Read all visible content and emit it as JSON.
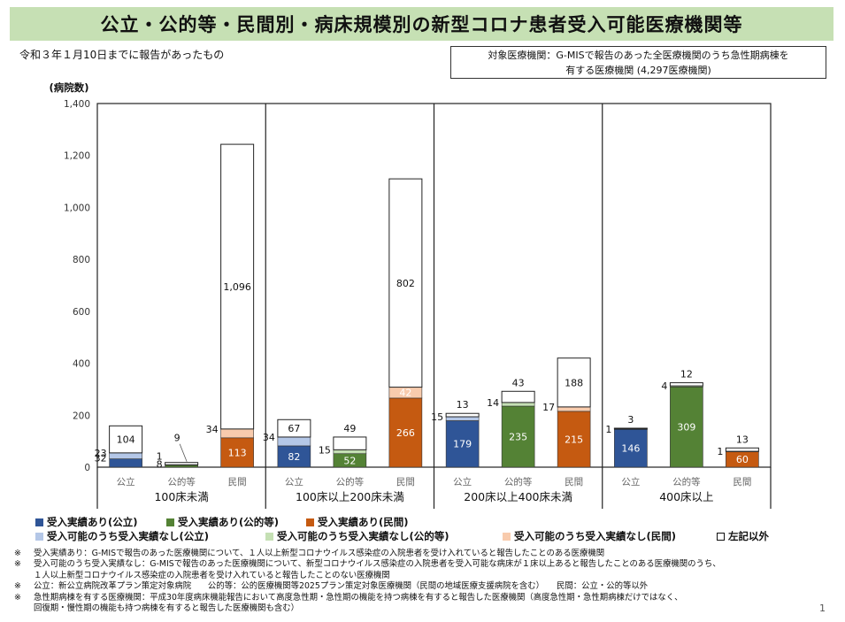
{
  "title": "公立・公的等・民間別・病床規模別の新型コロナ患者受入可能医療機関等",
  "subtitle": "令和３年１月10日までに報告があったもの",
  "target_box": {
    "line1": "対象医療機関：G-MISで報告のあった全医療機関のうち急性期病棟を",
    "line2": "有する医療機関 (4,297医療機関)"
  },
  "colors": {
    "public": "#2f5597",
    "quasi": "#548235",
    "private": "#c55a11",
    "public_light": "#b4c7e7",
    "quasi_light": "#c5e0b4",
    "private_light": "#f8cbad",
    "other": "#ffffff"
  },
  "chart_data": {
    "type": "bar",
    "stacked": true,
    "ylabel": "(病院数)",
    "ylim": [
      0,
      1400
    ],
    "yticks": [
      "0",
      "200",
      "400",
      "600",
      "800",
      "1,000",
      "1,200",
      "1,400"
    ],
    "grid": false,
    "groups": [
      {
        "label": "100床未満",
        "bars": [
          {
            "category": "公立",
            "kind": "public",
            "accepted": 32,
            "possible_not": 23,
            "other": 104,
            "labels": {
              "accepted": "32",
              "possible_not": "23",
              "other": "104"
            }
          },
          {
            "category": "公的等",
            "kind": "quasi",
            "accepted": 8,
            "possible_not": 1,
            "other": 9,
            "labels": {
              "accepted": "8",
              "possible_not": "1",
              "other": "9"
            }
          },
          {
            "category": "民間",
            "kind": "private",
            "accepted": 113,
            "possible_not": 34,
            "other": 1096,
            "labels": {
              "accepted": "113",
              "possible_not": "34",
              "other": "1,096"
            }
          }
        ]
      },
      {
        "label": "100床以上200床未満",
        "bars": [
          {
            "category": "公立",
            "kind": "public",
            "accepted": 82,
            "possible_not": 34,
            "other": 67,
            "labels": {
              "accepted": "82",
              "possible_not": "34",
              "other": "67"
            }
          },
          {
            "category": "公的等",
            "kind": "quasi",
            "accepted": 52,
            "possible_not": 15,
            "other": 49,
            "labels": {
              "accepted": "52",
              "possible_not": "15",
              "other": "49"
            }
          },
          {
            "category": "民間",
            "kind": "private",
            "accepted": 266,
            "possible_not": 42,
            "other": 802,
            "labels": {
              "accepted": "266",
              "possible_not": "42",
              "other": "802"
            }
          }
        ]
      },
      {
        "label": "200床以上400床未満",
        "bars": [
          {
            "category": "公立",
            "kind": "public",
            "accepted": 179,
            "possible_not": 15,
            "other": 13,
            "labels": {
              "accepted": "179",
              "possible_not": "15",
              "other": "13"
            }
          },
          {
            "category": "公的等",
            "kind": "quasi",
            "accepted": 235,
            "possible_not": 14,
            "other": 43,
            "labels": {
              "accepted": "235",
              "possible_not": "14",
              "other": "43"
            }
          },
          {
            "category": "民間",
            "kind": "private",
            "accepted": 215,
            "possible_not": 17,
            "other": 188,
            "labels": {
              "accepted": "215",
              "possible_not": "17",
              "other": "188"
            }
          }
        ]
      },
      {
        "label": "400床以上",
        "bars": [
          {
            "category": "公立",
            "kind": "public",
            "accepted": 146,
            "possible_not": 1,
            "other": 3,
            "labels": {
              "accepted": "146",
              "possible_not": "1",
              "other": "3"
            }
          },
          {
            "category": "公的等",
            "kind": "quasi",
            "accepted": 309,
            "possible_not": 4,
            "other": 12,
            "labels": {
              "accepted": "309",
              "possible_not": "4",
              "other": "12"
            }
          },
          {
            "category": "民間",
            "kind": "private",
            "accepted": 60,
            "possible_not": 1,
            "other": 13,
            "labels": {
              "accepted": "60",
              "possible_not": "1",
              "other": "13"
            }
          }
        ]
      }
    ],
    "legend": [
      {
        "key": "public",
        "label": "受入実績あり(公立)"
      },
      {
        "key": "quasi",
        "label": "受入実績あり(公的等)"
      },
      {
        "key": "private",
        "label": "受入実績あり(民間)"
      },
      {
        "key": "public_light",
        "label": "受入可能のうち受入実績なし(公立)"
      },
      {
        "key": "quasi_light",
        "label": "受入可能のうち受入実績なし(公的等)"
      },
      {
        "key": "private_light",
        "label": "受入可能のうち受入実績なし(民間)"
      },
      {
        "key": "other",
        "label": "左記以外"
      }
    ]
  },
  "notes": [
    {
      "mark": "※",
      "text": "受入実績あり：G-MISで報告のあった医療機関について、１人以上新型コロナウイルス感染症の入院患者を受け入れていると報告したことのある医療機関"
    },
    {
      "mark": "※",
      "text": "受入可能のうち受入実績なし：G-MISで報告のあった医療機関について、新型コロナウイルス感染症の入院患者を受入可能な病床が１床以上あると報告したことのある医療機関のうち、"
    },
    {
      "mark": "",
      "text": "１人以上新型コロナウイルス感染症の入院患者を受け入れていると報告したことのない医療機関"
    },
    {
      "mark": "※",
      "text": "公立：新公立病院改革プラン策定対象病院　　公的等：公的医療機関等2025プラン策定対象医療機関（民間の地域医療支援病院を含む）　　民間：公立・公的等以外"
    },
    {
      "mark": "※",
      "text": "急性期病棟を有する医療機関：平成30年度病床機能報告において高度急性期・急性期の機能を持つ病棟を有すると報告した医療機関（高度急性期・急性期病棟だけではなく、"
    },
    {
      "mark": "",
      "text": "回復期・慢性期の機能も持つ病棟を有すると報告した医療機関も含む）"
    }
  ],
  "page_number": "1"
}
